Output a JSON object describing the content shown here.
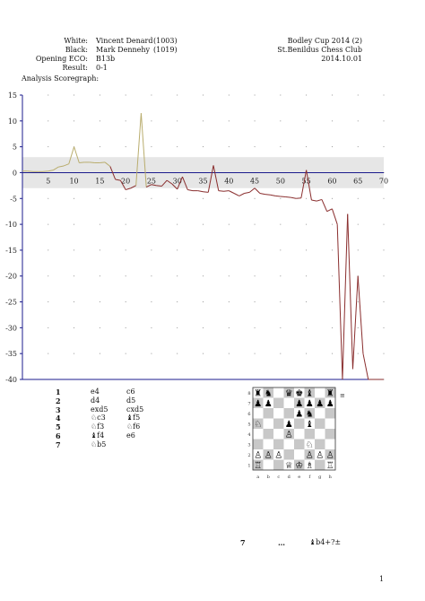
{
  "header": {
    "white_label": "White:",
    "white_name": "Vincent Denard",
    "white_rating": "(1003)",
    "black_label": "Black:",
    "black_name": "Mark Dennehy",
    "black_rating": "(1019)",
    "eco_label": "Opening ECO:",
    "eco_value": "B13b",
    "result_label": "Result:",
    "result_value": "0-1",
    "event": "Bodley Cup 2014 (2)",
    "site": "St.Benildus Chess Club",
    "date": "2014.10.01"
  },
  "graph_title": "Analysis Scoregraph:",
  "chart_data": {
    "type": "line",
    "xlim": [
      0,
      70
    ],
    "ylim": [
      -40,
      15
    ],
    "x_ticks": [
      5,
      10,
      15,
      20,
      25,
      30,
      35,
      40,
      45,
      50,
      55,
      60,
      65,
      70
    ],
    "y_ticks": [
      15,
      10,
      5,
      0,
      -5,
      -10,
      -15,
      -20,
      -25,
      -30,
      -35,
      -40
    ],
    "band": [
      -3,
      3
    ],
    "grid": "dotted",
    "colors": {
      "positive": "#b9ad6e",
      "negative": "#8a2e2e",
      "axis": "#1b1b8c",
      "band": "#e6e6e6"
    },
    "series": [
      {
        "x": [
          0,
          1,
          2,
          3,
          4,
          5,
          6,
          7,
          8,
          9,
          10,
          11,
          12,
          13,
          14,
          15,
          16,
          17,
          18,
          19,
          20,
          21,
          22,
          23,
          24,
          25,
          26,
          27,
          28,
          29,
          30,
          31,
          32,
          33,
          34,
          35,
          36,
          37,
          38,
          39,
          40,
          41,
          42,
          43,
          44,
          45,
          46,
          47,
          48,
          49,
          50,
          51,
          52,
          53,
          54,
          55,
          56,
          57,
          58,
          59,
          60,
          61,
          62,
          63,
          64,
          65,
          66,
          67,
          68,
          69,
          70
        ],
        "y": [
          0.3,
          0.3,
          0.2,
          0.2,
          0.2,
          0.3,
          0.5,
          1.1,
          1.3,
          1.7,
          5,
          1.9,
          2,
          2,
          1.9,
          1.9,
          2,
          1.2,
          -1.3,
          -1.5,
          -3.3,
          -3,
          -2.5,
          11.5,
          -2.8,
          -2.3,
          -2.5,
          -2.6,
          -1.5,
          -2.2,
          -3.2,
          -0.8,
          -3.3,
          -3.5,
          -3.5,
          -3.7,
          -3.8,
          1.4,
          -3.5,
          -3.6,
          -3.5,
          -4,
          -4.5,
          -4,
          -3.8,
          -3,
          -4,
          -4.2,
          -4.3,
          -4.5,
          -4.6,
          -4.7,
          -4.8,
          -5,
          -4.9,
          0.5,
          -5.3,
          -5.5,
          -5.2,
          -7.5,
          -7,
          -10,
          -40,
          -8,
          -38,
          -20,
          -35,
          -40,
          -40,
          -40,
          -40
        ]
      }
    ]
  },
  "moves": [
    {
      "num": "1",
      "white": "e4",
      "black": "c6"
    },
    {
      "num": "2",
      "white": "d4",
      "black": "d5"
    },
    {
      "num": "3",
      "white": "exd5",
      "black": "cxd5"
    },
    {
      "num": "4",
      "white": "♘c3",
      "black": "♝f5"
    },
    {
      "num": "5",
      "white": "♘f3",
      "black": "♘f6"
    },
    {
      "num": "6",
      "white": "♝f4",
      "black": "e6"
    },
    {
      "num": "7",
      "white": "♘b5",
      "black": ""
    }
  ],
  "board": {
    "ranks": [
      "8",
      "7",
      "6",
      "5",
      "4",
      "3",
      "2",
      "1"
    ],
    "files": [
      "a",
      "b",
      "c",
      "d",
      "e",
      "f",
      "g",
      "h"
    ],
    "position": [
      "♜♞ ♛♚♝ ♜",
      "♟♟  ♟♟♟♟",
      "    ♟♞  ",
      "♘  ♟ ♝  ",
      "   ♙    ",
      "     ♘  ",
      "♙♙♙  ♙♙♙",
      "♖  ♕♔♗ ♖"
    ],
    "side_to_move_icon": "≡"
  },
  "bottom": {
    "move_num": "7",
    "ellipsis": "…",
    "move": "♝b4+?±"
  },
  "page_number": "1"
}
